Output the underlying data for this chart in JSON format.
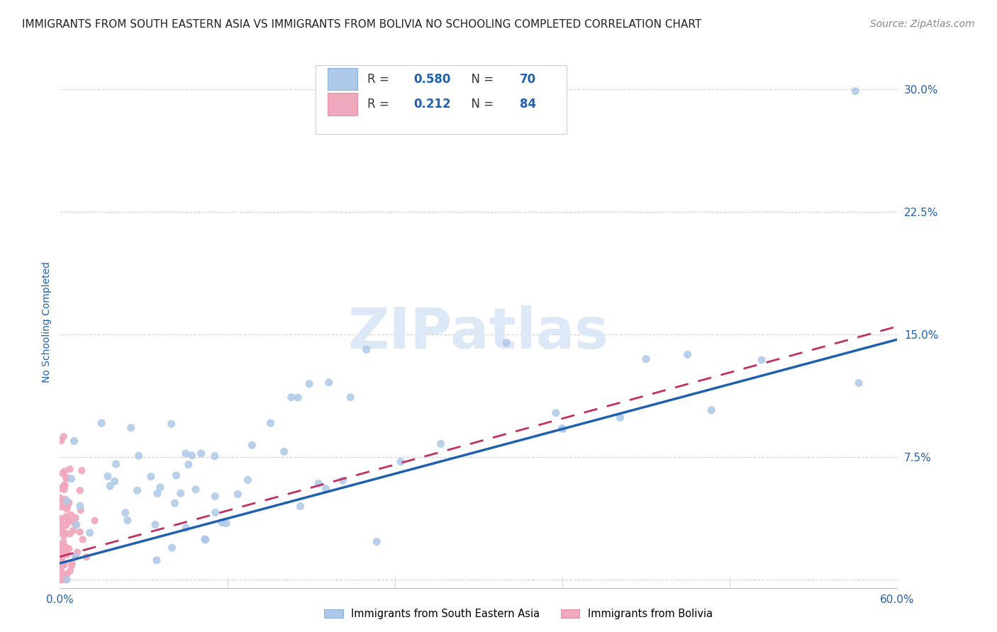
{
  "title": "IMMIGRANTS FROM SOUTH EASTERN ASIA VS IMMIGRANTS FROM BOLIVIA NO SCHOOLING COMPLETED CORRELATION CHART",
  "source": "Source: ZipAtlas.com",
  "ylabel": "No Schooling Completed",
  "xlim": [
    0.0,
    0.6
  ],
  "ylim": [
    -0.005,
    0.32
  ],
  "yticks": [
    0.0,
    0.075,
    0.15,
    0.225,
    0.3
  ],
  "ytick_labels": [
    "",
    "7.5%",
    "15.0%",
    "22.5%",
    "30.0%"
  ],
  "background_color": "#ffffff",
  "grid_color": "#d0d0d0",
  "watermark_text": "ZIPatlas",
  "watermark_color": "#dce8f5",
  "watermark_fontsize": 58,
  "series": [
    {
      "name": "Immigrants from South Eastern Asia",
      "color": "#adc8e8",
      "edge_color": "#adc8e8",
      "R": 0.58,
      "N": 70,
      "line_color": "#2060b0",
      "line_style": "solid",
      "regression_x0": 0.0,
      "regression_y0": 0.01,
      "regression_x1": 0.6,
      "regression_y1": 0.147
    },
    {
      "name": "Immigrants from Bolivia",
      "color": "#f0a8bc",
      "edge_color": "#f0a8bc",
      "R": 0.212,
      "N": 84,
      "line_color": "#c03060",
      "line_style": "dashed",
      "regression_x0": 0.0,
      "regression_y0": 0.014,
      "regression_x1": 0.6,
      "regression_y1": 0.155
    }
  ],
  "title_fontsize": 11,
  "axis_label_fontsize": 10,
  "tick_fontsize": 11,
  "legend_fontsize": 12,
  "source_fontsize": 10,
  "title_color": "#222222",
  "axis_label_color": "#2060b0",
  "tick_color": "#2060b0",
  "legend_R_N_color": "#2060b0",
  "legend_text_color": "#333333"
}
